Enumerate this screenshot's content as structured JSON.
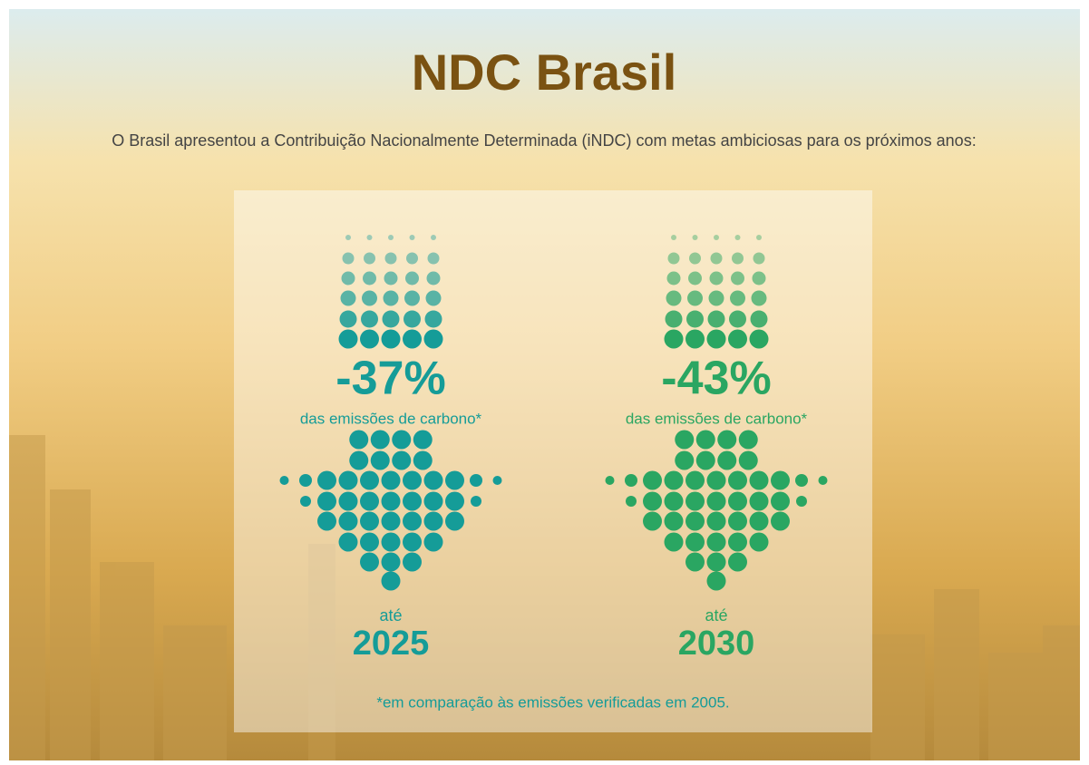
{
  "header": {
    "title": "NDC Brasil",
    "subtitle": "O Brasil apresentou a Contribuição Nacionalmente Determinada (iNDC) com metas ambiciosas para os próximos anos:"
  },
  "targets": [
    {
      "value": "-37%",
      "label": "das emissões de carbono*",
      "until": "até",
      "year": "2025",
      "color": "#159c98"
    },
    {
      "value": "-43%",
      "label": "das emissões de carbono*",
      "until": "até",
      "year": "2030",
      "color": "#2aa662"
    }
  ],
  "footnote": "*em comparação às emissões verificadas em 2005."
}
